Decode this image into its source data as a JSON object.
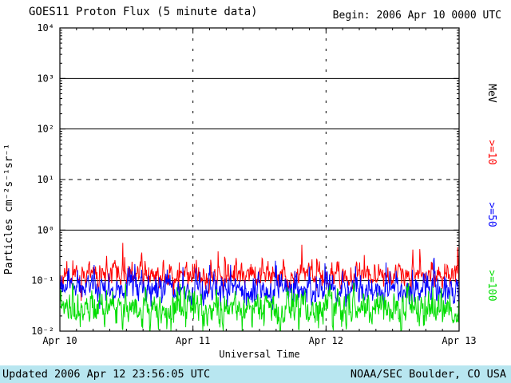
{
  "header": {
    "title": "GOES11 Proton Flux (5 minute data)",
    "begin_label": "Begin: 2006 Apr 10 0000 UTC"
  },
  "footer": {
    "updated": "Updated 2006 Apr 12 23:56:05 UTC",
    "source": "NOAA/SEC Boulder, CO USA",
    "bar_color": "#b8e6f0"
  },
  "chart_data": {
    "type": "line",
    "title": "GOES11 Proton Flux (5 minute data)",
    "xlabel": "Universal Time",
    "ylabel": "Particles cm⁻²s⁻¹sr⁻¹",
    "right_axis_label": "MeV",
    "x_tick_labels": [
      "Apr 10",
      "Apr 11",
      "Apr 12",
      "Apr 13"
    ],
    "x_days": 3,
    "samples_per_day": 288,
    "ylim_log": [
      -2,
      4
    ],
    "y_tick_labels": [
      "10⁴",
      "10³",
      "10²",
      "10¹",
      "10⁰",
      "10⁻¹",
      "10⁻²"
    ],
    "y_tick_logs": [
      4,
      3,
      2,
      1,
      0,
      -1,
      -2
    ],
    "grid_solid_log": [
      3,
      2,
      0,
      -1
    ],
    "grid_dashed_log": [
      1
    ],
    "day_boundary_lines": [
      1,
      2
    ],
    "axis_color": "#000000",
    "legend_position": "right",
    "series": [
      {
        "name": ">=10",
        "color": "#ff0000",
        "baseline_flux": 0.125,
        "range": [
          0.07,
          0.65
        ],
        "log_sigma": 0.11,
        "spike_prob": 0.03,
        "spike_mag": 0.55,
        "clip_log": [
          -2,
          -0.19
        ],
        "seed": 11
      },
      {
        "name": ">=50",
        "color": "#0000ff",
        "baseline_flux": 0.065,
        "range": [
          0.03,
          0.3
        ],
        "log_sigma": 0.13,
        "spike_prob": 0.02,
        "spike_mag": 0.45,
        "clip_log": [
          -2,
          -0.52
        ],
        "seed": 23
      },
      {
        "name": ">=100",
        "color": "#00dd00",
        "baseline_flux": 0.029,
        "range": [
          0.01,
          0.09
        ],
        "log_sigma": 0.17,
        "spike_prob": 0.012,
        "spike_mag": 0.3,
        "clip_log": [
          -2,
          -1.05
        ],
        "seed": 37
      }
    ]
  }
}
